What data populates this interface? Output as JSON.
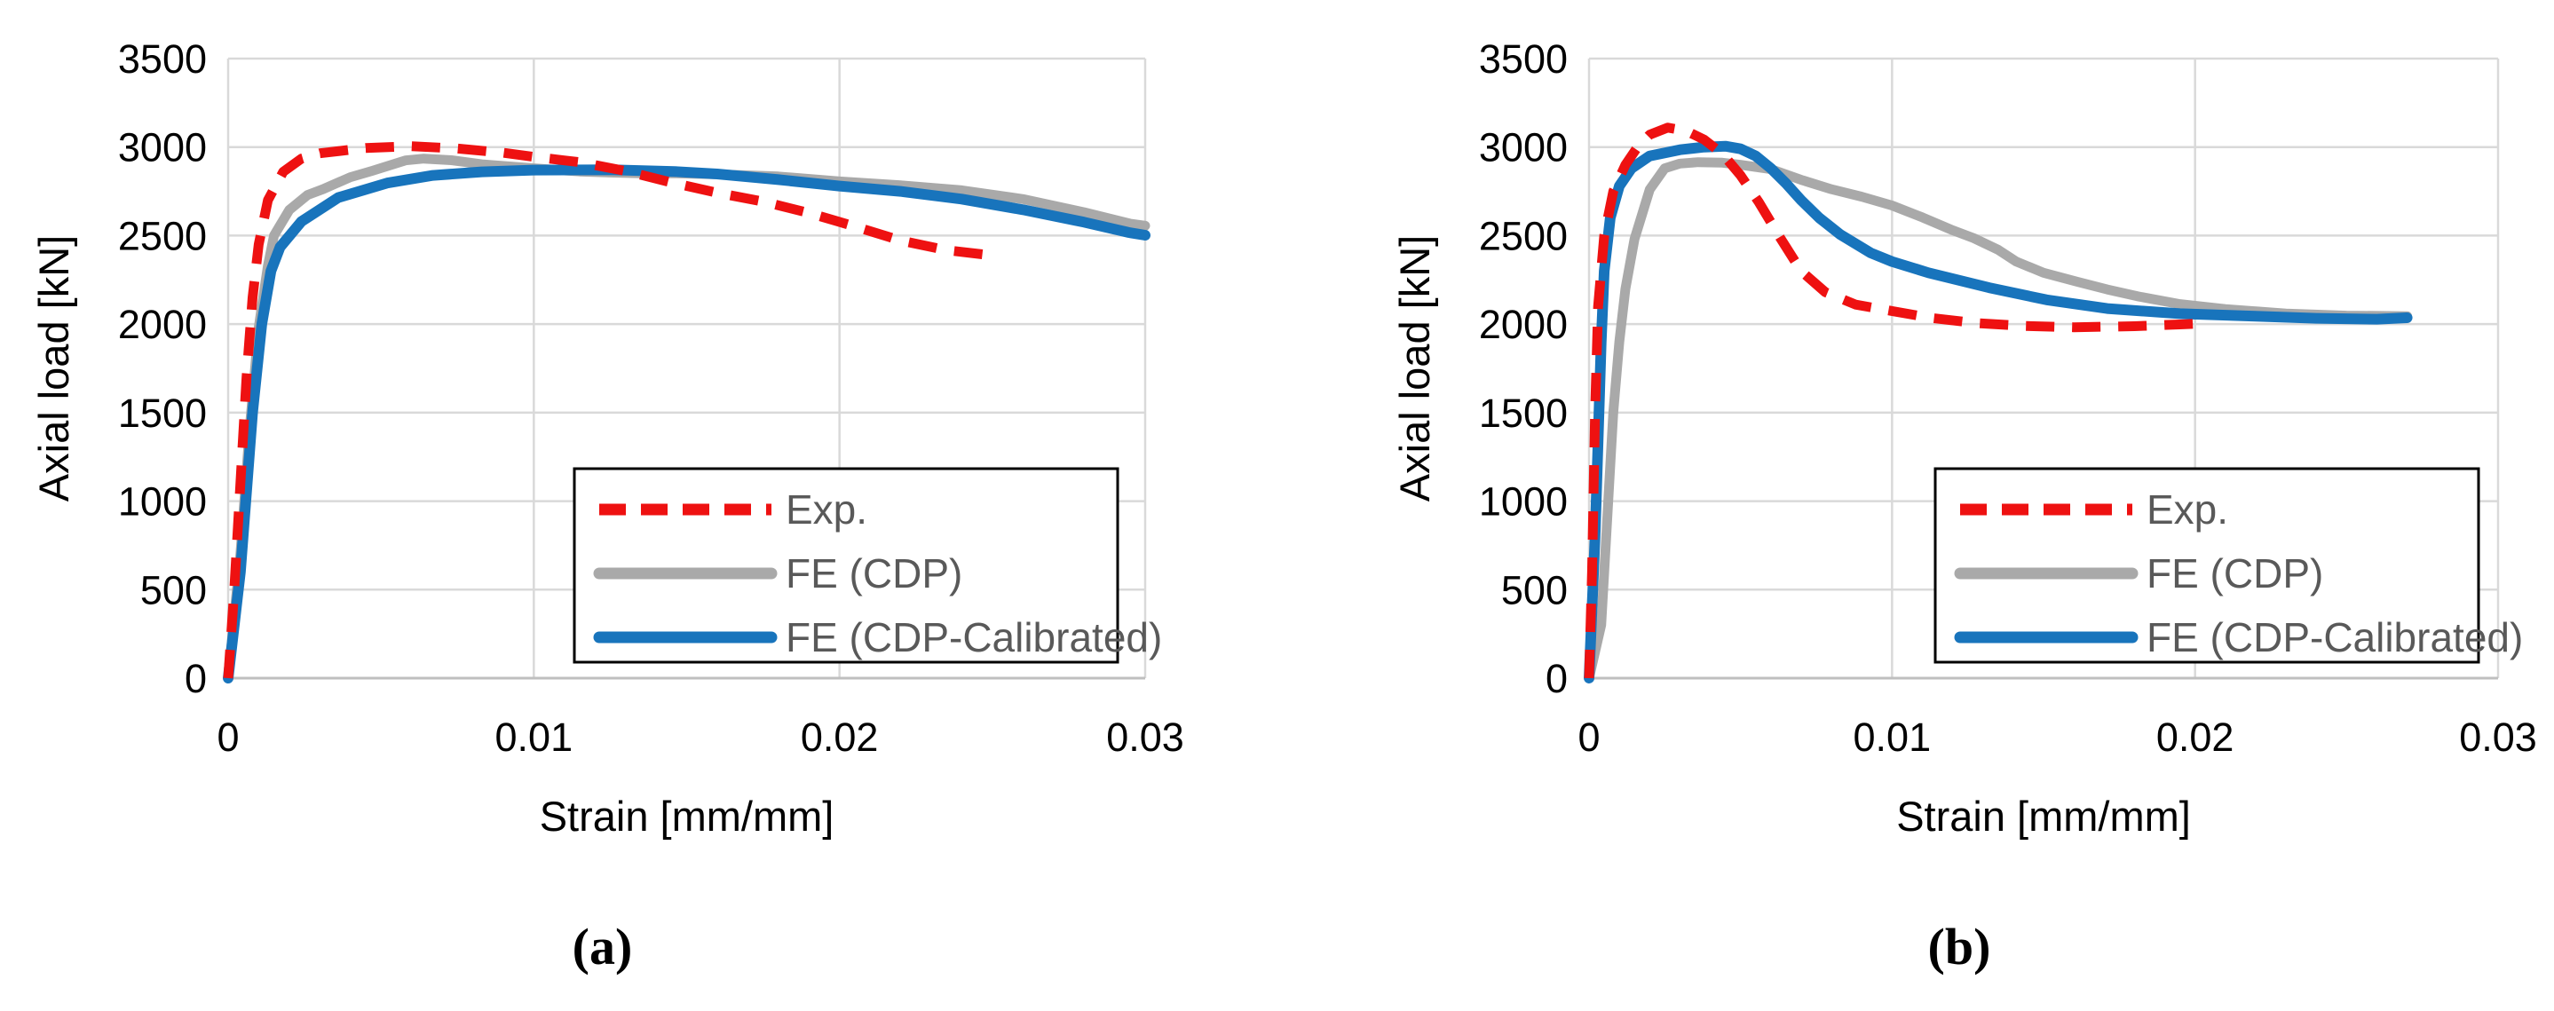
{
  "figure": {
    "background": "#ffffff",
    "description_visible_text_only": true
  },
  "colors": {
    "exp": "#EE1111",
    "fe_cdp": "#A9A9A9",
    "fe_cdp_calibrated": "#1874BC",
    "grid": "#D9D9D9",
    "axis": "#BFBFBF",
    "tick_text": "#000000",
    "title_text": "#000000",
    "legend_text": "#595959",
    "legend_border": "#000000",
    "legend_fill": "#FFFFFF"
  },
  "chart_data": [
    {
      "id": "a",
      "type": "line",
      "caption": "(a)",
      "xlabel": "Strain [mm/mm]",
      "ylabel": "Axial load [kN]",
      "xlim": [
        0,
        0.03
      ],
      "ylim": [
        0,
        3500
      ],
      "grid": true,
      "legend_position": "inside-bottom-right",
      "xticks": [
        0,
        0.01,
        0.02,
        0.03
      ],
      "xtick_labels": [
        "0",
        "0.01",
        "0.02",
        "0.03"
      ],
      "yticks": [
        0,
        500,
        1000,
        1500,
        2000,
        2500,
        3000,
        3500
      ],
      "ytick_labels": [
        "0",
        "500",
        "1000",
        "1500",
        "2000",
        "2500",
        "3000",
        "3500"
      ],
      "series": [
        {
          "key": "exp",
          "name": "Exp.",
          "color": "#EE1111",
          "dash": true,
          "width": 11,
          "points": [
            [
              0,
              0
            ],
            [
              0.0002,
              500
            ],
            [
              0.0004,
              1100
            ],
            [
              0.0006,
              1700
            ],
            [
              0.0008,
              2150
            ],
            [
              0.001,
              2450
            ],
            [
              0.0013,
              2700
            ],
            [
              0.0018,
              2860
            ],
            [
              0.0024,
              2935
            ],
            [
              0.003,
              2965
            ],
            [
              0.0045,
              2995
            ],
            [
              0.006,
              3005
            ],
            [
              0.0075,
              2992
            ],
            [
              0.009,
              2968
            ],
            [
              0.01,
              2945
            ],
            [
              0.0115,
              2915
            ],
            [
              0.013,
              2865
            ],
            [
              0.0145,
              2800
            ],
            [
              0.016,
              2742
            ],
            [
              0.0175,
              2692
            ],
            [
              0.019,
              2628
            ],
            [
              0.0205,
              2552
            ],
            [
              0.022,
              2472
            ],
            [
              0.0235,
              2418
            ],
            [
              0.0248,
              2392
            ]
          ]
        },
        {
          "key": "fe-cdp",
          "name": "FE (CDP)",
          "color": "#A9A9A9",
          "dash": false,
          "width": 11,
          "points": [
            [
              0,
              0
            ],
            [
              0.0004,
              700
            ],
            [
              0.0007,
              1400
            ],
            [
              0.001,
              1980
            ],
            [
              0.0013,
              2330
            ],
            [
              0.0015,
              2500
            ],
            [
              0.002,
              2645
            ],
            [
              0.0026,
              2730
            ],
            [
              0.0031,
              2762
            ],
            [
              0.004,
              2830
            ],
            [
              0.0047,
              2865
            ],
            [
              0.0058,
              2925
            ],
            [
              0.0064,
              2935
            ],
            [
              0.0073,
              2926
            ],
            [
              0.0083,
              2903
            ],
            [
              0.01,
              2880
            ],
            [
              0.0115,
              2862
            ],
            [
              0.0125,
              2856
            ],
            [
              0.0135,
              2852
            ],
            [
              0.0146,
              2852
            ],
            [
              0.016,
              2846
            ],
            [
              0.018,
              2834
            ],
            [
              0.02,
              2806
            ],
            [
              0.022,
              2784
            ],
            [
              0.024,
              2756
            ],
            [
              0.026,
              2706
            ],
            [
              0.028,
              2632
            ],
            [
              0.0295,
              2568
            ],
            [
              0.03,
              2556
            ]
          ]
        },
        {
          "key": "fe-cdp-calibrated",
          "name": "FE (CDP-Calibrated)",
          "color": "#1874BC",
          "dash": false,
          "width": 12,
          "points": [
            [
              0,
              0
            ],
            [
              0.0004,
              600
            ],
            [
              0.0008,
              1500
            ],
            [
              0.0011,
              2000
            ],
            [
              0.0014,
              2300
            ],
            [
              0.0017,
              2435
            ],
            [
              0.0024,
              2580
            ],
            [
              0.0036,
              2715
            ],
            [
              0.0052,
              2797
            ],
            [
              0.0067,
              2840
            ],
            [
              0.0083,
              2860
            ],
            [
              0.01,
              2870
            ],
            [
              0.0125,
              2872
            ],
            [
              0.0146,
              2862
            ],
            [
              0.016,
              2848
            ],
            [
              0.018,
              2816
            ],
            [
              0.02,
              2780
            ],
            [
              0.022,
              2750
            ],
            [
              0.024,
              2706
            ],
            [
              0.026,
              2646
            ],
            [
              0.028,
              2576
            ],
            [
              0.0295,
              2516
            ],
            [
              0.03,
              2502
            ]
          ]
        }
      ]
    },
    {
      "id": "b",
      "type": "line",
      "caption": "(b)",
      "xlabel": "Strain [mm/mm]",
      "ylabel": "Axial load [kN]",
      "xlim": [
        0,
        0.03
      ],
      "ylim": [
        0,
        3500
      ],
      "grid": true,
      "legend_position": "inside-bottom-right",
      "xticks": [
        0,
        0.01,
        0.02,
        0.03
      ],
      "xtick_labels": [
        "0",
        "0.01",
        "0.02",
        "0.03"
      ],
      "yticks": [
        0,
        500,
        1000,
        1500,
        2000,
        2500,
        3000,
        3500
      ],
      "ytick_labels": [
        "0",
        "500",
        "1000",
        "1500",
        "2000",
        "2500",
        "3000",
        "3500"
      ],
      "series": [
        {
          "key": "exp",
          "name": "Exp.",
          "color": "#EE1111",
          "dash": true,
          "width": 11,
          "points": [
            [
              0,
              0
            ],
            [
              0.0001,
              600
            ],
            [
              0.0002,
              1500
            ],
            [
              0.0003,
              2100
            ],
            [
              0.0005,
              2500
            ],
            [
              0.0008,
              2750
            ],
            [
              0.0012,
              2900
            ],
            [
              0.0016,
              3000
            ],
            [
              0.002,
              3070
            ],
            [
              0.0026,
              3110
            ],
            [
              0.0032,
              3092
            ],
            [
              0.0038,
              3042
            ],
            [
              0.0044,
              2962
            ],
            [
              0.005,
              2840
            ],
            [
              0.0056,
              2690
            ],
            [
              0.0063,
              2490
            ],
            [
              0.007,
              2300
            ],
            [
              0.0078,
              2180
            ],
            [
              0.0088,
              2110
            ],
            [
              0.01,
              2074
            ],
            [
              0.0113,
              2035
            ],
            [
              0.0128,
              2005
            ],
            [
              0.0143,
              1990
            ],
            [
              0.016,
              1982
            ],
            [
              0.018,
              1988
            ],
            [
              0.0195,
              1998
            ],
            [
              0.0205,
              2006
            ]
          ]
        },
        {
          "key": "fe-cdp",
          "name": "FE (CDP)",
          "color": "#A9A9A9",
          "dash": false,
          "width": 11,
          "points": [
            [
              0,
              0
            ],
            [
              0.0004,
              300
            ],
            [
              0.0006,
              900
            ],
            [
              0.0008,
              1500
            ],
            [
              0.001,
              1900
            ],
            [
              0.0012,
              2200
            ],
            [
              0.0015,
              2480
            ],
            [
              0.002,
              2760
            ],
            [
              0.0025,
              2880
            ],
            [
              0.003,
              2907
            ],
            [
              0.0036,
              2915
            ],
            [
              0.0044,
              2912
            ],
            [
              0.005,
              2900
            ],
            [
              0.006,
              2875
            ],
            [
              0.007,
              2815
            ],
            [
              0.008,
              2762
            ],
            [
              0.009,
              2720
            ],
            [
              0.01,
              2670
            ],
            [
              0.011,
              2603
            ],
            [
              0.012,
              2530
            ],
            [
              0.0127,
              2485
            ],
            [
              0.0135,
              2420
            ],
            [
              0.0141,
              2353
            ],
            [
              0.015,
              2290
            ],
            [
              0.0161,
              2240
            ],
            [
              0.0171,
              2196
            ],
            [
              0.0181,
              2157
            ],
            [
              0.0195,
              2113
            ],
            [
              0.021,
              2085
            ],
            [
              0.023,
              2060
            ],
            [
              0.025,
              2048
            ],
            [
              0.027,
              2045
            ]
          ]
        },
        {
          "key": "fe-cdp-calibrated",
          "name": "FE (CDP-Calibrated)",
          "color": "#1874BC",
          "dash": false,
          "width": 12,
          "points": [
            [
              0,
              0
            ],
            [
              0.0002,
              800
            ],
            [
              0.0004,
              1900
            ],
            [
              0.0005,
              2300
            ],
            [
              0.0007,
              2600
            ],
            [
              0.001,
              2780
            ],
            [
              0.0014,
              2880
            ],
            [
              0.002,
              2950
            ],
            [
              0.003,
              2985
            ],
            [
              0.0038,
              3000
            ],
            [
              0.0045,
              3005
            ],
            [
              0.005,
              2990
            ],
            [
              0.0055,
              2950
            ],
            [
              0.006,
              2880
            ],
            [
              0.0065,
              2795
            ],
            [
              0.007,
              2700
            ],
            [
              0.0076,
              2600
            ],
            [
              0.0083,
              2505
            ],
            [
              0.0093,
              2402
            ],
            [
              0.01,
              2353
            ],
            [
              0.0112,
              2290
            ],
            [
              0.0132,
              2206
            ],
            [
              0.0151,
              2137
            ],
            [
              0.0171,
              2088
            ],
            [
              0.0195,
              2059
            ],
            [
              0.022,
              2045
            ],
            [
              0.024,
              2033
            ],
            [
              0.026,
              2028
            ],
            [
              0.027,
              2036
            ]
          ]
        }
      ]
    }
  ]
}
